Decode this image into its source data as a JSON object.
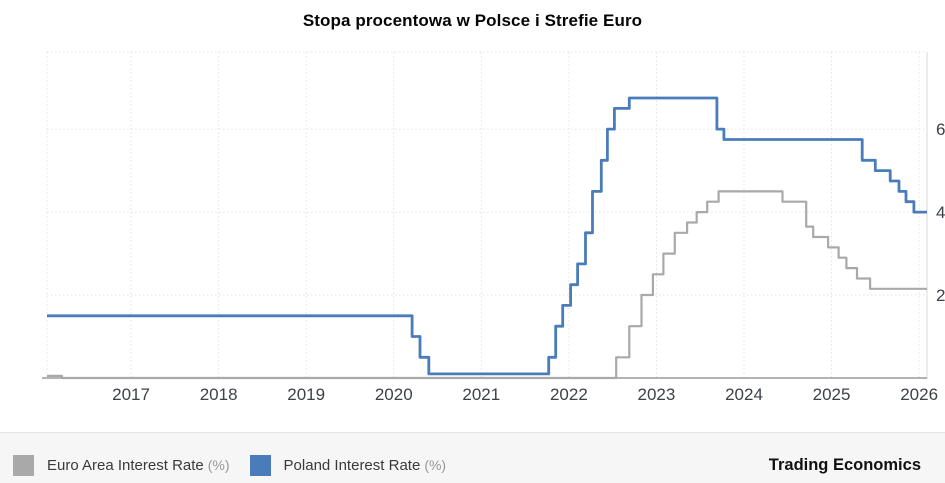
{
  "title": "Stopa procentowa w Polsce i Strefie Euro",
  "branding": "Trading Economics",
  "legend": [
    {
      "label": "Euro Area Interest Rate",
      "unit": "(%)",
      "color": "#a9a9a9"
    },
    {
      "label": "Poland Interest Rate",
      "unit": "(%)",
      "color": "#4a7cba"
    }
  ],
  "chart_data": {
    "type": "line",
    "step": "after",
    "title": "Stopa procentowa w Polsce i Strefie Euro",
    "xlabel": "",
    "ylabel": "",
    "grid": "dotted",
    "legend_position": "bottom",
    "x_axis": {
      "range": [
        2016.04,
        2026.09
      ],
      "ticks": [
        2017,
        2018,
        2019,
        2020,
        2021,
        2022,
        2023,
        2024,
        2025,
        2026
      ]
    },
    "y_axis": {
      "position": "right",
      "range": [
        0,
        7.86
      ],
      "ticks": [
        2,
        4,
        6
      ],
      "unit": "%"
    },
    "series": [
      {
        "id": "euro-area-line",
        "name": "Euro Area Interest Rate (%)",
        "color": "#a9a9a9",
        "width": 2.2,
        "points": [
          [
            2016.04,
            0.05
          ],
          [
            2016.21,
            0.0
          ],
          [
            2022.54,
            0.5
          ],
          [
            2022.69,
            1.25
          ],
          [
            2022.83,
            2.0
          ],
          [
            2022.96,
            2.5
          ],
          [
            2023.08,
            3.0
          ],
          [
            2023.21,
            3.5
          ],
          [
            2023.35,
            3.75
          ],
          [
            2023.46,
            4.0
          ],
          [
            2023.58,
            4.25
          ],
          [
            2023.71,
            4.5
          ],
          [
            2024.44,
            4.25
          ],
          [
            2024.71,
            3.65
          ],
          [
            2024.79,
            3.4
          ],
          [
            2024.96,
            3.15
          ],
          [
            2025.08,
            2.9
          ],
          [
            2025.17,
            2.65
          ],
          [
            2025.29,
            2.4
          ],
          [
            2025.44,
            2.15
          ]
        ]
      },
      {
        "id": "poland-line",
        "name": "Poland Interest Rate (%)",
        "color": "#4a7cba",
        "width": 2.8,
        "points": [
          [
            2016.04,
            1.5
          ],
          [
            2020.21,
            1.0
          ],
          [
            2020.3,
            0.5
          ],
          [
            2020.4,
            0.1
          ],
          [
            2021.77,
            0.5
          ],
          [
            2021.85,
            1.25
          ],
          [
            2021.93,
            1.75
          ],
          [
            2022.02,
            2.25
          ],
          [
            2022.1,
            2.75
          ],
          [
            2022.19,
            3.5
          ],
          [
            2022.27,
            4.5
          ],
          [
            2022.37,
            5.25
          ],
          [
            2022.44,
            6.0
          ],
          [
            2022.52,
            6.5
          ],
          [
            2022.69,
            6.75
          ],
          [
            2023.69,
            6.0
          ],
          [
            2023.77,
            5.75
          ],
          [
            2025.35,
            5.25
          ],
          [
            2025.5,
            5.0
          ],
          [
            2025.67,
            4.75
          ],
          [
            2025.77,
            4.5
          ],
          [
            2025.85,
            4.25
          ],
          [
            2025.94,
            4.0
          ]
        ]
      }
    ]
  }
}
